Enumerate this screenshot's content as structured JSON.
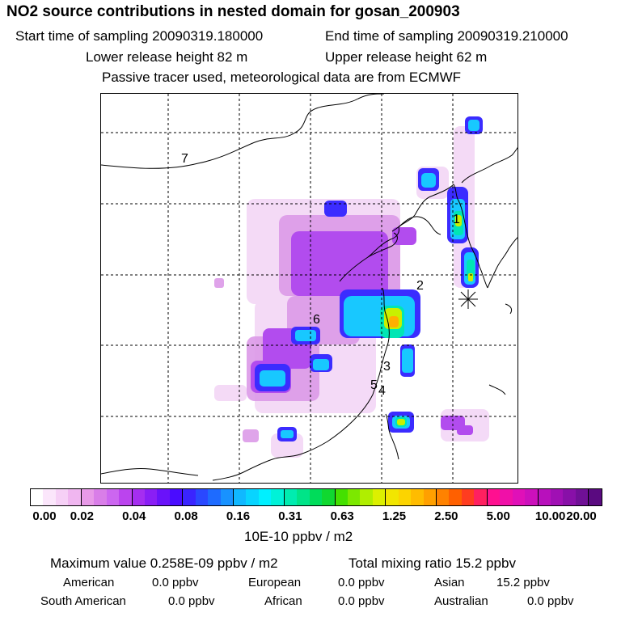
{
  "header": {
    "title": "NO2 source contributions in nested domain for gosan_200903",
    "start_label": "Start time of sampling 20090319.180000",
    "end_label": "End time of sampling 20090319.210000",
    "lower_label": "Lower release height   82 m",
    "upper_label": "Upper release height   62 m",
    "tracer_note": "Passive tracer used, meteorological data are from ECMWF"
  },
  "map": {
    "region_labels": [
      "1",
      "2",
      "3",
      "4",
      "5",
      "6",
      "7"
    ],
    "receptor_marker": "asterisk-icon"
  },
  "colorbar": {
    "ticks": [
      "0.00",
      "0.02",
      "0.04",
      "0.08",
      "0.16",
      "0.31",
      "0.63",
      "1.25",
      "2.50",
      "5.00",
      "10.00",
      "20.00"
    ],
    "unit": "10E-10 ppbv / m2",
    "colors": [
      "#ffffff",
      "#fbe6fb",
      "#f6d0f6",
      "#f0b6f0",
      "#e89ae8",
      "#d97ee8",
      "#cc66f0",
      "#bb44ee",
      "#a52ef0",
      "#8a1ef5",
      "#6a12fa",
      "#4a0cff",
      "#3a24ff",
      "#2a48ff",
      "#1e6bff",
      "#1892ff",
      "#10b8ff",
      "#08d4ff",
      "#00f0ff",
      "#00f2d8",
      "#00ecb0",
      "#00e488",
      "#00dc5a",
      "#10d830",
      "#44e000",
      "#7ce800",
      "#b0ee00",
      "#dcf000",
      "#f2e600",
      "#fcd400",
      "#ffbc00",
      "#ffa000",
      "#ff8200",
      "#ff6000",
      "#ff3c20",
      "#ff2060",
      "#ff1090",
      "#f010a8",
      "#e010b8",
      "#cc10bc",
      "#b810bc",
      "#a010b4",
      "#8810a8",
      "#701096",
      "#5a0a80"
    ]
  },
  "stats": {
    "max_value": "Maximum value  0.258E-09 ppbv / m2",
    "total_mixing": "Total mixing ratio       15.2 ppbv",
    "american_label": "American",
    "american_value": "0.0 ppbv",
    "european_label": "European",
    "european_value": "0.0 ppbv",
    "asian_label": "Asian",
    "asian_value": "15.2 ppbv",
    "south_american_label": "South American",
    "south_american_value": "0.0 ppbv",
    "african_label": "African",
    "african_value": "0.0 ppbv",
    "australian_label": "Australian",
    "australian_value": "0.0 ppbv"
  }
}
